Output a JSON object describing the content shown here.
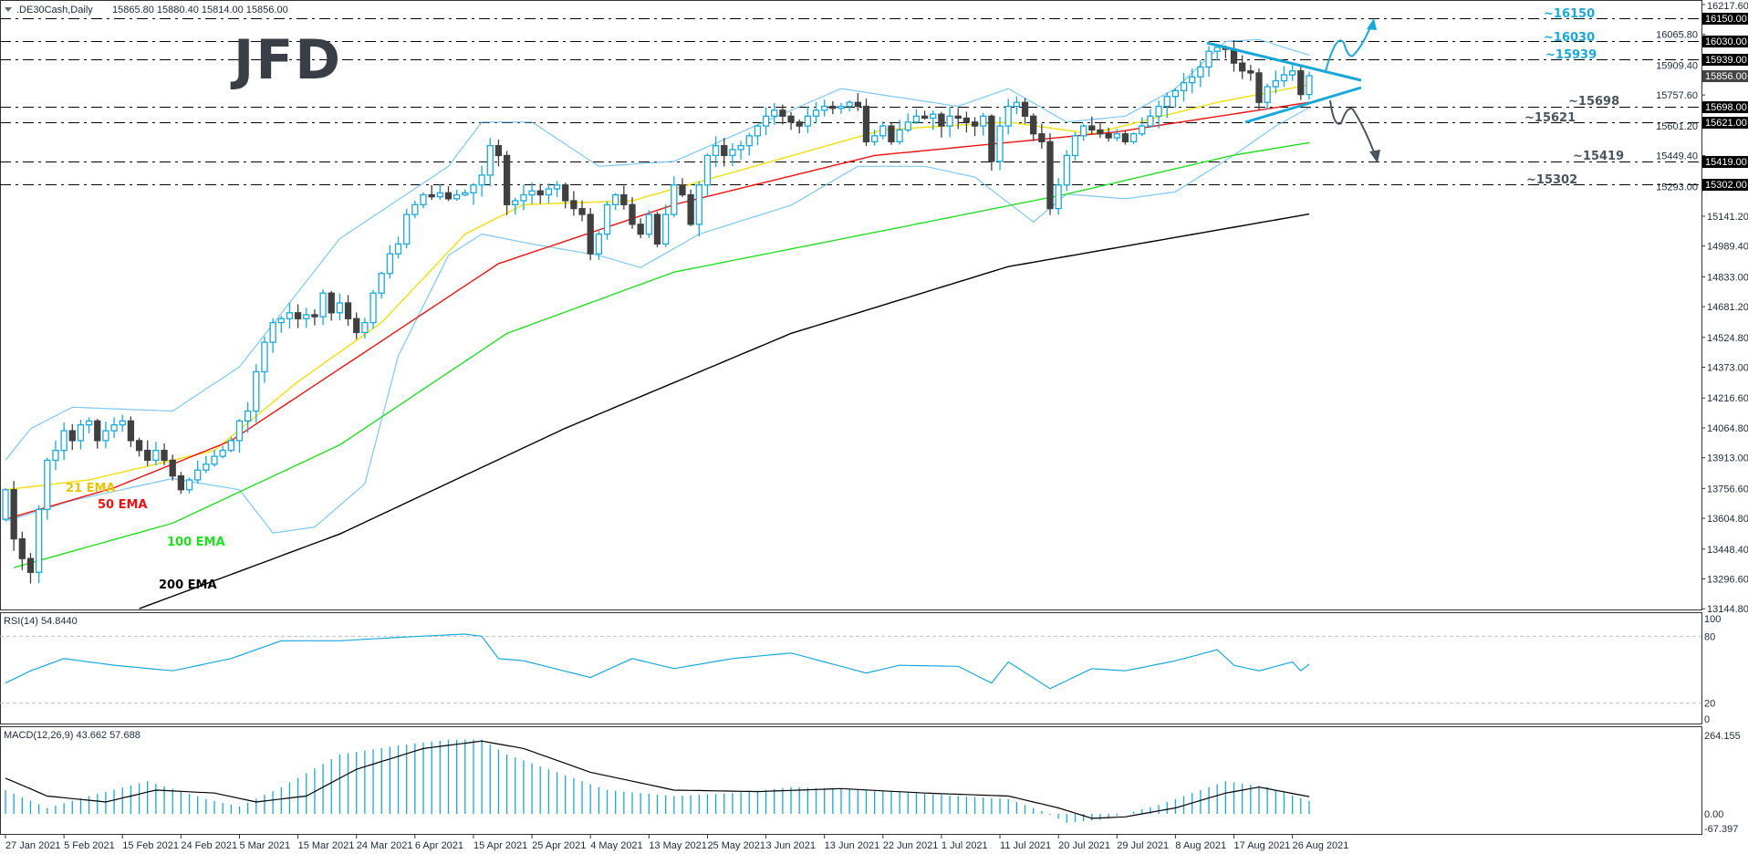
{
  "header": {
    "symbol": ".DE30Cash,Daily",
    "ohlc": "15865.80 15880.40 15814.00 15856.00"
  },
  "logo": "JFD",
  "colors": {
    "bull_outline": "#1aa8d8",
    "bear_fill": "#404040",
    "ema21": "#f0e010",
    "ema50": "#ee1111",
    "ema100": "#22dd22",
    "ema200": "#000000",
    "bollinger": "#7ec8f0",
    "trendline": "#1aa8d8",
    "bull_annotation": "#1aa8d8",
    "bear_annotation": "#4a5560"
  },
  "chart_data": [
    {
      "type": "candlestick",
      "title": ".DE30Cash,Daily",
      "ylim": [
        13144.8,
        16217.6
      ],
      "y_ticks": [
        "16217.60",
        "16065.80",
        "15909.40",
        "15757.60",
        "15601.20",
        "15449.40",
        "15293.00",
        "15141.20",
        "14989.40",
        "14833.00",
        "14681.20",
        "14524.80",
        "14373.00",
        "14216.60",
        "14064.80",
        "13913.00",
        "13756.60",
        "13604.80",
        "13448.40",
        "13296.60",
        "13144.80"
      ],
      "x_ticks": [
        "27 Jan 2021",
        "5 Feb 2021",
        "15 Feb 2021",
        "24 Feb 2021",
        "5 Mar 2021",
        "15 Mar 2021",
        "24 Mar 2021",
        "6 Apr 2021",
        "15 Apr 2021",
        "25 Apr 2021",
        "4 May 2021",
        "13 May 2021",
        "25 May 2021",
        "3 Jun 2021",
        "13 Jun 2021",
        "22 Jun 2021",
        "1 Jul 2021",
        "11 Jul 2021",
        "20 Jul 2021",
        "29 Jul 2021",
        "8 Aug 2021",
        "17 Aug 2021",
        "26 Aug 2021"
      ],
      "close": [
        13750,
        13500,
        13400,
        13330,
        13650,
        13900,
        13950,
        14050,
        14000,
        14080,
        14100,
        14000,
        14050,
        14080,
        14100,
        14000,
        13950,
        13900,
        13950,
        13900,
        13820,
        13750,
        13800,
        13850,
        13880,
        13920,
        13950,
        14000,
        14100,
        14150,
        14350,
        14500,
        14600,
        14620,
        14650,
        14620,
        14640,
        14630,
        14750,
        14650,
        14700,
        14620,
        14550,
        14600,
        14750,
        14850,
        14950,
        15000,
        15150,
        15200,
        15250,
        15240,
        15260,
        15230,
        15250,
        15260,
        15300,
        15350,
        15500,
        15450,
        15200,
        15220,
        15250,
        15270,
        15250,
        15280,
        15300,
        15220,
        15180,
        15150,
        14950,
        15050,
        15200,
        15250,
        15200,
        15100,
        15050,
        15150,
        15000,
        15150,
        15300,
        15250,
        15100,
        15300,
        15450,
        15500,
        15450,
        15480,
        15500,
        15550,
        15600,
        15650,
        15680,
        15650,
        15620,
        15600,
        15650,
        15680,
        15700,
        15690,
        15700,
        15720,
        15700,
        15520,
        15550,
        15600,
        15520,
        15580,
        15620,
        15650,
        15640,
        15660,
        15600,
        15650,
        15640,
        15620,
        15600,
        15650,
        15420,
        15600,
        15700,
        15720,
        15650,
        15560,
        15520,
        15180,
        15300,
        15450,
        15550,
        15600,
        15580,
        15560,
        15540,
        15560,
        15520,
        15560,
        15600,
        15650,
        15700,
        15750,
        15780,
        15820,
        15850,
        15900,
        15980,
        16000,
        15990,
        15920,
        15880,
        15870,
        15720,
        15800,
        15830,
        15860,
        15880,
        15760,
        15856
      ],
      "last_close": 15856.0,
      "series": [
        {
          "name": "21 EMA",
          "points": [
            [
              0,
              13750
            ],
            [
              10,
              13800
            ],
            [
              25,
              13950
            ],
            [
              35,
              14300
            ],
            [
              45,
              14600
            ],
            [
              55,
              15050
            ],
            [
              62,
              15200
            ],
            [
              75,
              15220
            ],
            [
              90,
              15400
            ],
            [
              105,
              15580
            ],
            [
              120,
              15620
            ],
            [
              130,
              15560
            ],
            [
              145,
              15720
            ],
            [
              156,
              15810
            ]
          ]
        },
        {
          "name": "50 EMA",
          "points": [
            [
              0,
              13600
            ],
            [
              13,
              13760
            ],
            [
              27,
              14000
            ],
            [
              43,
              14450
            ],
            [
              59,
              14900
            ],
            [
              80,
              15200
            ],
            [
              104,
              15450
            ],
            [
              133,
              15570
            ],
            [
              156,
              15720
            ]
          ]
        },
        {
          "name": "100 EMA",
          "points": [
            [
              1,
              13354
            ],
            [
              20,
              13580
            ],
            [
              40,
              13978
            ],
            [
              60,
              14545
            ],
            [
              80,
              14857
            ],
            [
              107,
              15084
            ],
            [
              127,
              15254
            ],
            [
              147,
              15452
            ],
            [
              156,
              15515
            ]
          ]
        },
        {
          "name": "200 EMA",
          "points": [
            [
              16,
              13145
            ],
            [
              40,
              13525
            ],
            [
              67,
              14063
            ],
            [
              94,
              14545
            ],
            [
              120,
              14885
            ],
            [
              156,
              15152
            ]
          ]
        },
        {
          "name": "bollinger_upper",
          "points": [
            [
              0,
              13900
            ],
            [
              3,
              14060
            ],
            [
              8,
              14170
            ],
            [
              20,
              14150
            ],
            [
              28,
              14375
            ],
            [
              40,
              15027
            ],
            [
              53,
              15395
            ],
            [
              57,
              15620
            ],
            [
              63,
              15620
            ],
            [
              71,
              15395
            ],
            [
              80,
              15420
            ],
            [
              94,
              15680
            ],
            [
              100,
              15790
            ],
            [
              114,
              15700
            ],
            [
              120,
              15790
            ],
            [
              127,
              15620
            ],
            [
              134,
              15650
            ],
            [
              140,
              15790
            ],
            [
              146,
              16030
            ],
            [
              150,
              16040
            ],
            [
              156,
              15960
            ]
          ]
        },
        {
          "name": "bollinger_lower",
          "points": [
            [
              0,
              13590
            ],
            [
              8,
              13695
            ],
            [
              20,
              13807
            ],
            [
              28,
              13750
            ],
            [
              32,
              13530
            ],
            [
              37,
              13560
            ],
            [
              43,
              13780
            ],
            [
              47,
              14430
            ],
            [
              53,
              14942
            ],
            [
              57,
              15050
            ],
            [
              63,
              15000
            ],
            [
              71,
              14942
            ],
            [
              76,
              14880
            ],
            [
              83,
              15050
            ],
            [
              94,
              15197
            ],
            [
              102,
              15395
            ],
            [
              110,
              15395
            ],
            [
              116,
              15340
            ],
            [
              123,
              15112
            ],
            [
              127,
              15254
            ],
            [
              134,
              15230
            ],
            [
              140,
              15265
            ],
            [
              147,
              15452
            ],
            [
              152,
              15600
            ],
            [
              156,
              15693
            ]
          ]
        }
      ],
      "horizontal_levels": [
        {
          "value": "16150.00",
          "annotation": "~16150",
          "tone": "bull"
        },
        {
          "value": "16030.00",
          "annotation": "~16030",
          "tone": "bull"
        },
        {
          "value": "15939.00",
          "annotation": "~15939",
          "tone": "bull"
        },
        {
          "value": "15698.00",
          "annotation": "~15698",
          "tone": "bear"
        },
        {
          "value": "15621.00",
          "annotation": "~15621",
          "tone": "bear"
        },
        {
          "value": "15419.00",
          "annotation": "~15419",
          "tone": "bear"
        },
        {
          "value": "15302.00",
          "annotation": "~15302",
          "tone": "bear"
        }
      ],
      "ema_labels": [
        "21 EMA",
        "50 EMA",
        "100 EMA",
        "200 EMA"
      ],
      "price_label": "15856.00"
    },
    {
      "type": "line",
      "title": "RSI(14) 54.8440",
      "ylim": [
        0,
        100
      ],
      "y_ticks": [
        "100",
        "80",
        "20",
        "0"
      ],
      "levels": [
        80,
        20
      ],
      "points": [
        [
          0,
          38
        ],
        [
          3,
          49
        ],
        [
          7,
          60
        ],
        [
          13,
          54
        ],
        [
          20,
          49
        ],
        [
          27,
          60
        ],
        [
          33,
          76
        ],
        [
          40,
          76
        ],
        [
          47,
          79
        ],
        [
          55,
          82
        ],
        [
          57,
          80
        ],
        [
          59,
          60
        ],
        [
          62,
          58
        ],
        [
          70,
          43
        ],
        [
          75,
          60
        ],
        [
          80,
          51
        ],
        [
          87,
          60
        ],
        [
          94,
          65
        ],
        [
          103,
          47
        ],
        [
          107,
          54
        ],
        [
          114,
          53
        ],
        [
          118,
          38
        ],
        [
          120,
          57
        ],
        [
          125,
          33
        ],
        [
          130,
          51
        ],
        [
          134,
          49
        ],
        [
          140,
          58
        ],
        [
          145,
          68
        ],
        [
          147,
          54
        ],
        [
          150,
          49
        ],
        [
          154,
          57
        ],
        [
          155,
          49
        ],
        [
          156,
          55
        ]
      ]
    },
    {
      "type": "bar",
      "title": "MACD(12,26,9) 43.662 57.688",
      "ylim": [
        -67.397,
        264.155
      ],
      "y_ticks": [
        "264.155",
        "0.00",
        "-67.397"
      ],
      "histogram_points": [
        [
          0,
          80
        ],
        [
          5,
          20
        ],
        [
          10,
          60
        ],
        [
          17,
          110
        ],
        [
          24,
          50
        ],
        [
          28,
          25
        ],
        [
          33,
          90
        ],
        [
          40,
          200
        ],
        [
          47,
          230
        ],
        [
          53,
          250
        ],
        [
          57,
          250
        ],
        [
          60,
          200
        ],
        [
          65,
          150
        ],
        [
          72,
          80
        ],
        [
          80,
          60
        ],
        [
          87,
          70
        ],
        [
          94,
          90
        ],
        [
          104,
          80
        ],
        [
          114,
          60
        ],
        [
          120,
          50
        ],
        [
          124,
          10
        ],
        [
          127,
          -30
        ],
        [
          131,
          -20
        ],
        [
          134,
          0
        ],
        [
          138,
          30
        ],
        [
          143,
          80
        ],
        [
          146,
          110
        ],
        [
          151,
          90
        ],
        [
          156,
          44
        ]
      ],
      "signal_points": [
        [
          0,
          120
        ],
        [
          5,
          60
        ],
        [
          12,
          40
        ],
        [
          18,
          80
        ],
        [
          25,
          70
        ],
        [
          30,
          40
        ],
        [
          36,
          60
        ],
        [
          42,
          150
        ],
        [
          50,
          220
        ],
        [
          57,
          245
        ],
        [
          62,
          220
        ],
        [
          70,
          140
        ],
        [
          80,
          80
        ],
        [
          90,
          75
        ],
        [
          100,
          85
        ],
        [
          110,
          70
        ],
        [
          120,
          60
        ],
        [
          126,
          20
        ],
        [
          130,
          -15
        ],
        [
          134,
          -10
        ],
        [
          140,
          20
        ],
        [
          146,
          70
        ],
        [
          150,
          90
        ],
        [
          156,
          58
        ]
      ]
    }
  ]
}
